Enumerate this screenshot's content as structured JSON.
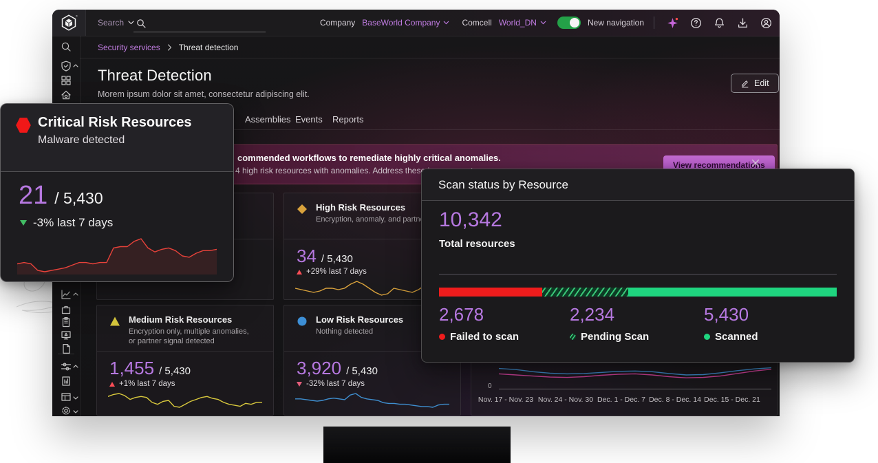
{
  "topbar": {
    "search_menu_label": "Search",
    "company_label": "Company",
    "company_value": "BaseWorld Company",
    "account_label": "Comcell",
    "account_value": "World_DN",
    "new_navigation_label": "New navigation"
  },
  "breadcrumb": {
    "section": "Security services",
    "current": "Threat detection"
  },
  "page_header": {
    "title": "Threat Detection",
    "subtitle": "Morem ipsum dolor sit amet, consectetur adipiscing elit.",
    "edit_label": "Edit"
  },
  "tabs": [
    {
      "label": "Assemblies"
    },
    {
      "label": "Events"
    },
    {
      "label": "Reports"
    }
  ],
  "banner": {
    "headline_fragment": "commended workflows to remediate highly critical anomalies.",
    "body_fragment": "4 high risk resources with anomalies. Address these issues now to e",
    "action_label": "View recommendations"
  },
  "risk_cards": {
    "high": {
      "title": "High Risk Resources",
      "subtitle": "Encryption, anomaly, and partner signal d",
      "value": "34",
      "denominator": "/ 5,430",
      "delta": "+29% last 7 days"
    },
    "medium": {
      "title": "Medium Risk Resources",
      "subtitle_line1": "Encryption only, multiple anomalies,",
      "subtitle_line2": "or partner signal detected",
      "value": "1,455",
      "denominator": "/ 5,430",
      "delta": "+1% last 7 days"
    },
    "low": {
      "title": "Low Risk Resources",
      "subtitle": "Nothing detected",
      "value": "3,920",
      "denominator": "/ 5,430",
      "delta": "-32% last 7 days"
    }
  },
  "critical_popup": {
    "title": "Critical Risk Resources",
    "subtitle": "Malware detected",
    "value": "21",
    "denominator": "/ 5,430",
    "delta": "-3% last 7 days"
  },
  "scan_popup": {
    "title": "Scan status by Resource",
    "total_value": "10,342",
    "total_label": "Total resources",
    "segments": [
      {
        "value": "2,678",
        "label": "Failed to scan"
      },
      {
        "value": "2,234",
        "label": "Pending Scan"
      },
      {
        "value": "5,430",
        "label": "Scanned"
      }
    ]
  },
  "trend_chart": {
    "y_zero": "0",
    "x_labels": [
      "Nov. 17 - Nov. 23",
      "Nov. 24 - Nov. 30",
      "Dec. 1 - Dec. 7",
      "Dec. 8 - Dec. 14",
      "Dec. 15 - Dec. 21"
    ]
  },
  "colors": {
    "accent_purple": "#b678e0",
    "link_purple": "#c07ce0",
    "toggle_green": "#24a148",
    "failed_red": "#ef1c1c",
    "scanned_green": "#1fd57f",
    "critical_red": "#e8423a",
    "high_gold": "#d9a23c",
    "medium_yellow": "#d8c83d",
    "low_blue": "#3f8fd0",
    "trend_pink": "#d4439c"
  },
  "chart_data": [
    {
      "type": "line",
      "name": "critical-sparkline",
      "color": "#e8423a",
      "values": [
        16,
        17,
        16,
        11,
        10,
        11,
        12,
        13,
        15,
        17,
        17,
        16,
        17,
        17,
        28,
        29,
        29,
        33,
        35,
        28,
        25,
        27,
        28,
        26,
        22,
        21,
        24,
        26,
        26,
        27
      ]
    },
    {
      "type": "line",
      "name": "high-sparkline",
      "color": "#d9a23c",
      "values": [
        12,
        11,
        10,
        9,
        10,
        12,
        12,
        11,
        12,
        15,
        17,
        15,
        12,
        9,
        7,
        8,
        12,
        11,
        10,
        9,
        11,
        14,
        13,
        12,
        12,
        13
      ]
    },
    {
      "type": "line",
      "name": "medium-sparkline",
      "color": "#d8c83d",
      "values": [
        14,
        16,
        17,
        15,
        11,
        13,
        14,
        13,
        8,
        6,
        9,
        10,
        4,
        3,
        6,
        9,
        11,
        13,
        14,
        12,
        11,
        8,
        6,
        5,
        4,
        7,
        6,
        8,
        8
      ]
    },
    {
      "type": "line",
      "name": "low-sparkline",
      "color": "#3f8fd0",
      "values": [
        12,
        12,
        11,
        10,
        9,
        10,
        12,
        13,
        12,
        11,
        17,
        19,
        14,
        12,
        11,
        10,
        7,
        6,
        6,
        5,
        5,
        4,
        3,
        2,
        2,
        1,
        4,
        5,
        5
      ]
    },
    {
      "type": "stacked-bar",
      "name": "scan-status-bar",
      "total": 10342,
      "segments": [
        {
          "label": "Failed to scan",
          "value": 2678,
          "pct": 25.9,
          "color": "#ef1c1c"
        },
        {
          "label": "Pending Scan",
          "value": 2234,
          "pct": 21.6,
          "color": "striped-green"
        },
        {
          "label": "Scanned",
          "value": 5430,
          "pct": 52.5,
          "color": "#1fd57f"
        }
      ]
    },
    {
      "type": "line",
      "name": "resources-trend",
      "x_labels": [
        "Nov. 17 - Nov. 23",
        "Nov. 24 - Nov. 30",
        "Dec. 1 - Dec. 7",
        "Dec. 8 - Dec. 14",
        "Dec. 15 - Dec. 21"
      ],
      "ylim": [
        0,
        100
      ],
      "series": [
        {
          "name": "blue",
          "color": "#3f8fd0",
          "values": [
            86,
            80,
            68,
            60,
            56,
            58,
            64,
            70,
            72,
            68,
            58,
            50,
            52,
            62,
            74,
            84,
            90
          ]
        },
        {
          "name": "pink",
          "color": "#d4439c",
          "values": [
            56,
            50,
            44,
            38,
            36,
            40,
            48,
            54,
            56,
            50,
            40,
            34,
            36,
            44,
            58,
            72,
            82
          ]
        }
      ]
    }
  ]
}
